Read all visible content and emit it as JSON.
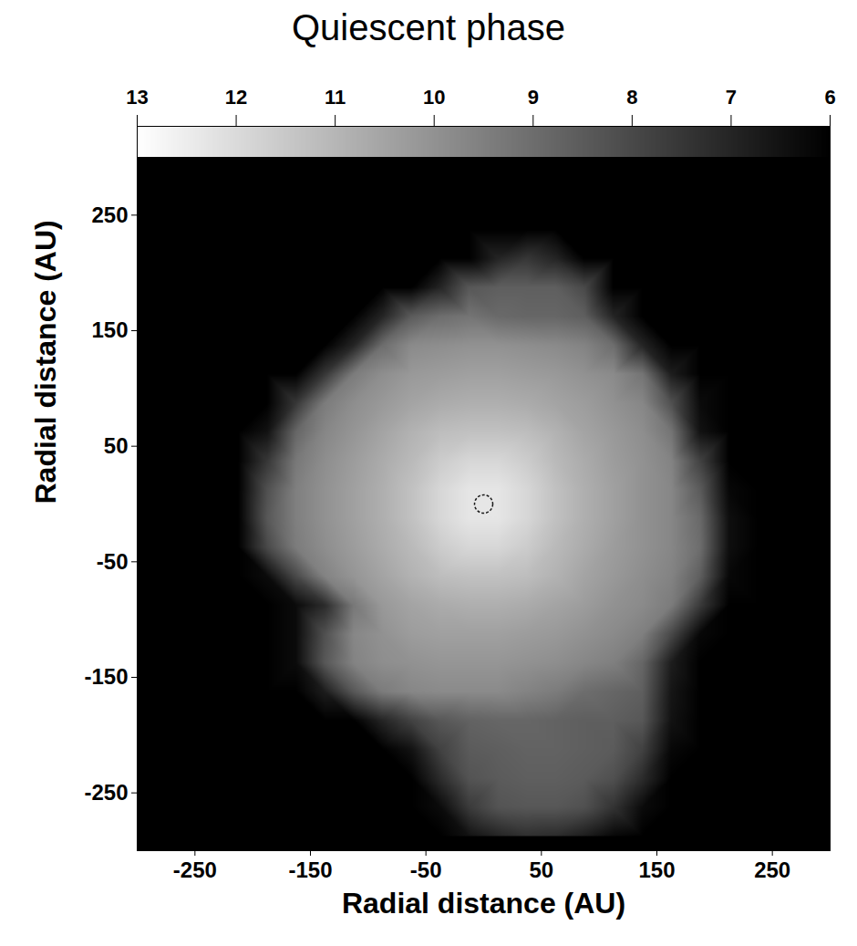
{
  "chart_data": {
    "type": "heatmap",
    "title": "Quiescent phase",
    "x_label": "Radial distance (AU)",
    "y_label": "Radial distance (AU)",
    "xlim": [
      -300,
      300
    ],
    "ylim": [
      -300,
      300
    ],
    "xticks": [
      -250,
      -150,
      -50,
      50,
      150,
      250
    ],
    "yticks": [
      -250,
      -150,
      -50,
      50,
      150,
      250
    ],
    "colorbar": {
      "range": [
        13,
        6
      ],
      "ticks": [
        13,
        12,
        11,
        10,
        9,
        8,
        7,
        6
      ]
    },
    "x": [
      -287.5,
      -262.5,
      -237.5,
      -212.5,
      -187.5,
      -162.5,
      -137.5,
      -112.5,
      -87.5,
      -62.5,
      -37.5,
      -12.5,
      12.5,
      37.5,
      62.5,
      87.5,
      112.5,
      137.5,
      162.5,
      187.5,
      212.5,
      237.5,
      262.5,
      287.5
    ],
    "y": [
      287.5,
      262.5,
      237.5,
      212.5,
      187.5,
      162.5,
      137.5,
      112.5,
      87.5,
      62.5,
      37.5,
      12.5,
      -12.5,
      -37.5,
      -62.5,
      -87.5,
      -112.5,
      -137.5,
      -162.5,
      -187.5,
      -212.5,
      -237.5,
      -262.5,
      -287.5
    ],
    "values": [
      [
        6,
        6,
        6,
        6,
        6,
        6,
        6,
        6,
        6,
        6,
        6,
        6,
        6,
        6,
        6,
        6,
        6,
        6,
        6,
        6,
        6,
        6,
        6,
        6
      ],
      [
        6,
        6,
        6,
        6,
        6,
        6,
        6,
        6,
        6,
        6,
        6,
        6,
        6,
        6,
        6,
        6,
        6,
        6,
        6,
        6,
        6,
        6,
        6,
        6
      ],
      [
        6,
        6,
        6,
        6,
        6,
        6,
        6,
        6,
        6,
        6,
        6,
        6,
        6,
        6,
        6,
        6,
        6,
        6,
        6,
        6,
        6,
        6,
        6,
        6
      ],
      [
        6,
        6,
        6,
        6,
        6,
        6,
        6,
        6,
        6,
        6,
        6,
        6,
        7,
        7.5,
        7,
        6,
        6,
        6,
        6,
        6,
        6,
        6,
        6,
        6
      ],
      [
        6,
        6,
        6,
        6,
        6,
        6,
        6,
        6,
        6,
        6,
        7,
        8.4,
        8.6,
        8.6,
        8.6,
        8,
        6,
        6,
        6,
        6,
        6,
        6,
        6,
        6
      ],
      [
        6,
        6,
        6,
        6,
        6,
        6,
        6,
        6,
        7,
        8.5,
        9,
        9.2,
        8.9,
        8.8,
        8.8,
        8.6,
        7,
        6,
        6,
        6,
        6,
        6,
        6,
        6
      ],
      [
        6,
        6,
        6,
        6,
        6,
        6,
        6,
        7,
        9,
        9.8,
        9.9,
        10,
        10,
        9.9,
        9.8,
        9.6,
        9,
        7,
        6,
        6,
        6,
        6,
        6,
        6
      ],
      [
        6,
        6,
        6,
        6,
        6,
        6,
        7.5,
        9.4,
        9.9,
        10.2,
        10.3,
        10.4,
        10.4,
        10.3,
        10.2,
        10,
        9.8,
        9.2,
        6.8,
        6,
        6,
        6,
        6,
        6
      ],
      [
        6,
        6,
        6,
        6,
        6,
        7.5,
        9.4,
        9.9,
        10.2,
        10.5,
        10.7,
        10.8,
        10.8,
        10.7,
        10.5,
        10.3,
        10,
        9.7,
        8.2,
        6.3,
        6,
        6,
        6,
        6
      ],
      [
        6,
        6,
        6,
        6,
        6.5,
        8.8,
        9.7,
        10.1,
        10.5,
        10.9,
        11.2,
        11.3,
        11.3,
        11.2,
        10.9,
        10.5,
        10.2,
        9.9,
        9.2,
        6.5,
        6,
        6,
        6,
        6
      ],
      [
        6,
        6,
        6,
        6,
        7.5,
        9.3,
        9.9,
        10.3,
        10.7,
        11.1,
        11.6,
        11.9,
        11.9,
        11.6,
        11.1,
        10.7,
        10.3,
        10,
        9.6,
        7.8,
        6,
        6,
        6,
        6
      ],
      [
        6,
        6,
        6,
        6,
        8.2,
        9.5,
        10,
        10.4,
        10.8,
        11.3,
        11.9,
        12.3,
        12.3,
        11.9,
        11.3,
        10.8,
        10.4,
        10,
        9.7,
        8.5,
        6.2,
        6,
        6,
        6
      ],
      [
        6,
        6,
        6,
        6,
        8.4,
        9.5,
        10,
        10.4,
        10.8,
        11.3,
        11.9,
        12.3,
        12.3,
        11.9,
        11.3,
        10.8,
        10.4,
        10,
        9.7,
        8.9,
        6.4,
        6,
        6,
        6
      ],
      [
        6,
        6,
        6,
        6,
        8,
        9.4,
        9.9,
        10.3,
        10.7,
        11.1,
        11.6,
        11.9,
        11.9,
        11.6,
        11.1,
        10.7,
        10.3,
        10,
        9.7,
        9,
        6.4,
        6,
        6,
        6
      ],
      [
        6,
        6,
        6,
        6,
        6.3,
        8,
        9.6,
        10.1,
        10.5,
        10.9,
        11.2,
        11.3,
        11.3,
        11.2,
        10.9,
        10.5,
        10.2,
        9.9,
        9.6,
        8.6,
        6.2,
        6,
        6,
        6
      ],
      [
        6,
        6,
        6,
        6,
        6,
        6.3,
        7.2,
        9.3,
        10.2,
        10.5,
        10.7,
        10.8,
        10.8,
        10.7,
        10.5,
        10.3,
        10,
        9.8,
        9.4,
        7.6,
        6,
        6,
        6,
        6
      ],
      [
        6,
        6,
        6,
        6,
        6,
        6.3,
        8.2,
        9.7,
        10,
        10.3,
        10.4,
        10.4,
        10.4,
        10.3,
        10.2,
        10,
        9.8,
        9.5,
        8,
        6.2,
        6,
        6,
        6,
        6
      ],
      [
        6,
        6,
        6,
        6,
        6,
        6.3,
        8.4,
        9.6,
        9.9,
        10,
        10.1,
        10.1,
        10.1,
        10,
        9.9,
        9.7,
        9.5,
        8.8,
        6.8,
        6,
        6,
        6,
        6,
        6
      ],
      [
        6,
        6,
        6,
        6,
        6,
        6,
        6.8,
        8.4,
        9.4,
        9.7,
        9.8,
        9.8,
        9.8,
        9.6,
        9.4,
        9,
        8.8,
        8.6,
        6.6,
        6,
        6,
        6,
        6,
        6
      ],
      [
        6,
        6,
        6,
        6,
        6,
        6,
        6,
        6,
        7,
        7.8,
        8.4,
        8.7,
        8.8,
        8.8,
        8.7,
        8.6,
        8.6,
        8.4,
        6.5,
        6,
        6,
        6,
        6,
        6
      ],
      [
        6,
        6,
        6,
        6,
        6,
        6,
        6,
        6,
        6,
        6.5,
        7.8,
        8.5,
        8.6,
        8.7,
        8.7,
        8.6,
        8.5,
        7.8,
        6.2,
        6,
        6,
        6,
        6,
        6
      ],
      [
        6,
        6,
        6,
        6,
        6,
        6,
        6,
        6,
        6,
        6,
        7.2,
        8.3,
        8.5,
        8.6,
        8.6,
        8.5,
        8.2,
        7.2,
        6,
        6,
        6,
        6,
        6,
        6
      ],
      [
        6,
        6,
        6,
        6,
        6,
        6,
        6,
        6,
        6,
        6,
        6.3,
        7.6,
        8.3,
        8.4,
        8.4,
        8.2,
        7.4,
        6.3,
        6,
        6,
        6,
        6,
        6,
        6
      ],
      [
        6,
        6,
        6,
        6,
        6,
        6,
        6,
        6,
        6,
        6,
        6,
        6.5,
        7,
        7.3,
        7.2,
        6.8,
        6.2,
        6,
        6,
        6,
        6,
        6,
        6,
        6
      ]
    ]
  }
}
